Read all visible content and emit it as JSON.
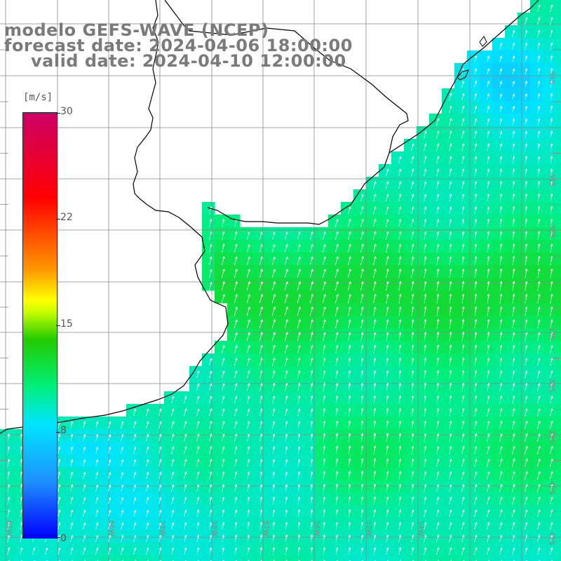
{
  "titles": {
    "line1": "modelo GEFS-WAVE (NCEP)",
    "line2": "forecast date: 2024-04-06 18:00:00",
    "line3": "valid date: 2024-04-10 12:00:00"
  },
  "colorbar": {
    "unit": "[m/s]",
    "ticks": [
      "30",
      "22",
      "15",
      "8",
      "0"
    ],
    "range": [
      0,
      30
    ],
    "colors": [
      "#0000ff",
      "#1e90ff",
      "#00e5ff",
      "#00ee77",
      "#22cc00",
      "#ffff00",
      "#ff9900",
      "#ff0000",
      "#cc0066"
    ]
  },
  "lat_labels": [
    "34S",
    "35S",
    "36S",
    "37S",
    "38S",
    "39S",
    "40S",
    "41S"
  ],
  "lon_labels": [
    "61W",
    "60W",
    "59W",
    "58W",
    "57W",
    "56W",
    "55W",
    "54W"
  ],
  "field": {
    "variable": "wind speed and direction",
    "wind_from": "southwest",
    "speed_range_ms": [
      6,
      13
    ]
  },
  "colors": {
    "land": "#ffffff",
    "grid": "#888888",
    "coast": "#000000",
    "arrow": "#ffffff"
  }
}
